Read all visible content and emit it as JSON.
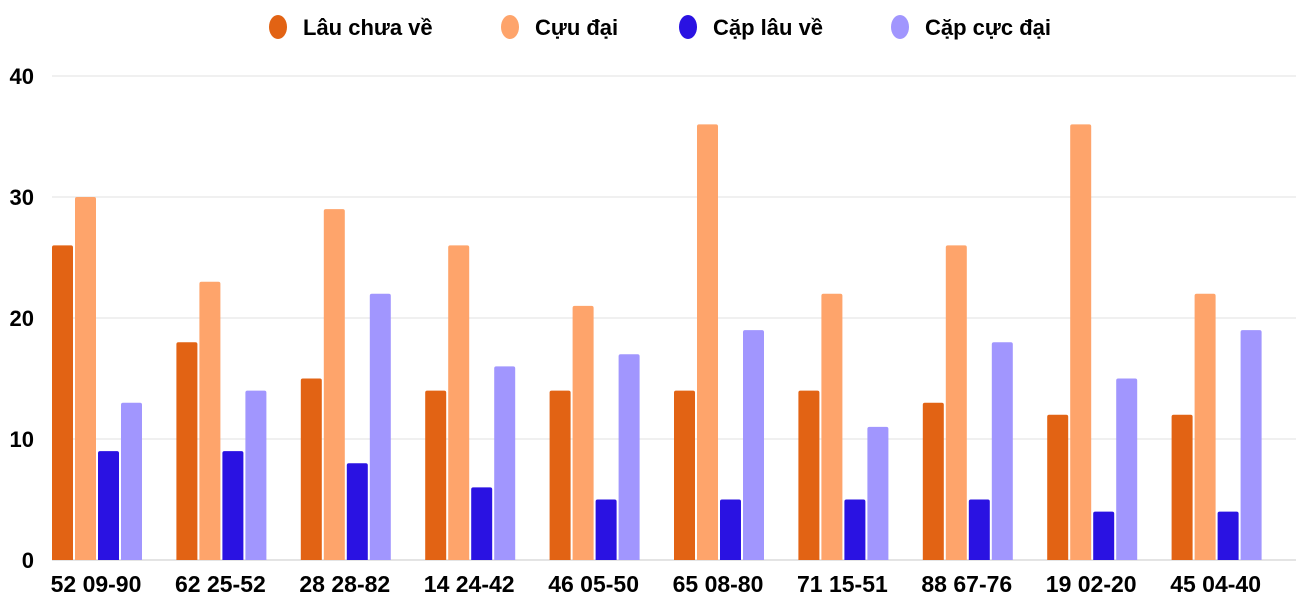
{
  "chart_data": {
    "type": "bar",
    "title": "",
    "xlabel": "",
    "ylabel": "",
    "ylim": [
      0,
      40
    ],
    "yticks": [
      0,
      10,
      20,
      30,
      40
    ],
    "grid": true,
    "legend_position": "top",
    "categories": [
      "52 09-90",
      "62 25-52",
      "28 28-82",
      "14 24-42",
      "46 05-50",
      "65 08-80",
      "71 15-51",
      "88 67-76",
      "19 02-20",
      "45 04-40"
    ],
    "series": [
      {
        "name": "Lâu chưa về",
        "color": "#e26314",
        "values": [
          26,
          18,
          15,
          14,
          14,
          14,
          14,
          13,
          12,
          12
        ]
      },
      {
        "name": "Cựu đại",
        "color": "#fea46b",
        "values": [
          30,
          23,
          29,
          26,
          21,
          36,
          22,
          26,
          36,
          22
        ]
      },
      {
        "name": "Cặp lâu về",
        "color": "#2a12e2",
        "values": [
          9,
          9,
          8,
          6,
          5,
          5,
          5,
          5,
          4,
          4
        ]
      },
      {
        "name": "Cặp cực đại",
        "color": "#a196fe",
        "values": [
          13,
          14,
          22,
          16,
          17,
          19,
          11,
          18,
          15,
          19
        ]
      }
    ]
  }
}
